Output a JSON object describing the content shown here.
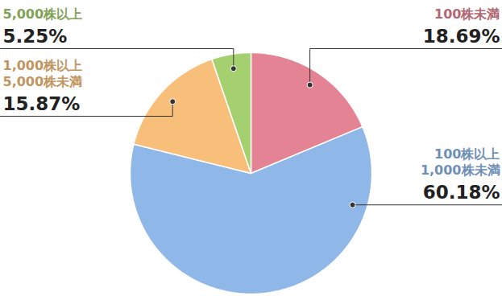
{
  "chart_data": {
    "type": "pie",
    "categories": [
      "100株未満",
      "100株以上\n1,000株未満",
      "1,000株以上\n5,000株未満",
      "5,000株以上"
    ],
    "values": [
      18.69,
      60.18,
      15.87,
      5.25
    ],
    "value_labels": [
      "18.69%",
      "60.18%",
      "15.87%",
      "5.25%"
    ],
    "colors": [
      "#e38394",
      "#8fb7e8",
      "#f8bf7a",
      "#a5d06f"
    ],
    "data_labels": true
  }
}
